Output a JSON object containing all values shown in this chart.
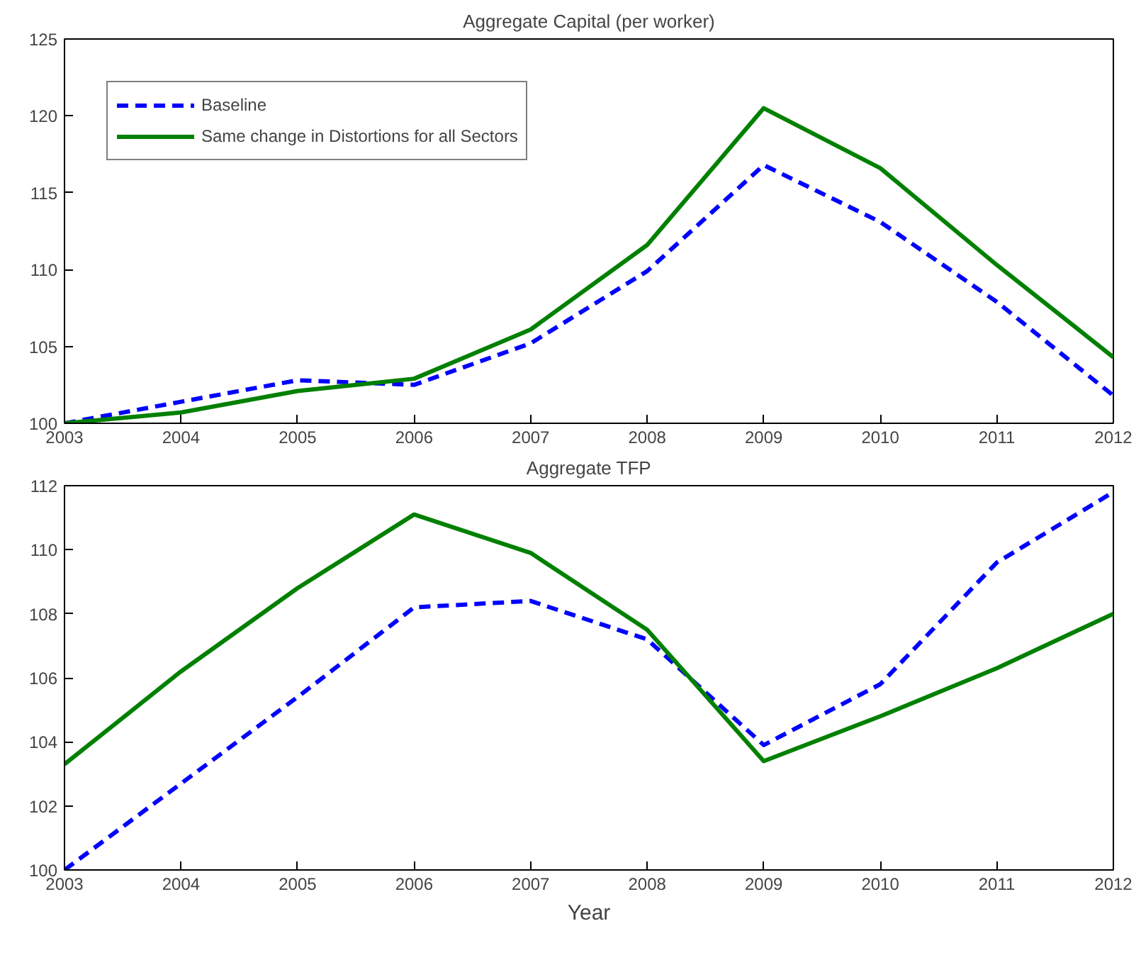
{
  "chart_data": [
    {
      "type": "line",
      "title": "Aggregate Capital (per worker)",
      "x": [
        2003,
        2004,
        2005,
        2006,
        2007,
        2008,
        2009,
        2010,
        2011,
        2012
      ],
      "series": [
        {
          "name": "Baseline",
          "color": "#0000ff",
          "line_style": "dashed",
          "values": [
            100,
            101.4,
            102.8,
            102.5,
            105.2,
            109.9,
            116.8,
            113.1,
            107.9,
            101.8
          ]
        },
        {
          "name": "Same change in Distortions for all Sectors",
          "color": "#008000",
          "line_style": "solid",
          "values": [
            100,
            100.7,
            102.1,
            102.9,
            106.1,
            111.6,
            120.5,
            116.6,
            110.3,
            104.3
          ]
        }
      ],
      "xlim": [
        2003,
        2012
      ],
      "xticks": [
        2003,
        2004,
        2005,
        2006,
        2007,
        2008,
        2009,
        2010,
        2011,
        2012
      ],
      "ylim": [
        100,
        125
      ],
      "yticks": [
        100,
        105,
        110,
        115,
        120,
        125
      ],
      "grid": false,
      "legend": "top left",
      "marker": "none"
    },
    {
      "type": "line",
      "title": "Aggregate TFP",
      "xlabel": "Year",
      "x": [
        2003,
        2004,
        2005,
        2006,
        2007,
        2008,
        2009,
        2010,
        2011,
        2012
      ],
      "series": [
        {
          "color": "#0000ff",
          "line_style": "dashed",
          "values": [
            100,
            102.7,
            105.4,
            108.2,
            108.4,
            107.2,
            103.9,
            105.8,
            109.6,
            111.8
          ]
        },
        {
          "color": "#008000",
          "line_style": "solid",
          "values": [
            103.3,
            106.2,
            108.8,
            111.1,
            109.9,
            107.5,
            103.4,
            104.8,
            106.3,
            108.0
          ]
        }
      ],
      "xlim": [
        2003,
        2012
      ],
      "xticks": [
        2003,
        2004,
        2005,
        2006,
        2007,
        2008,
        2009,
        2010,
        2011,
        2012
      ],
      "ylim": [
        100,
        112
      ],
      "yticks": [
        100,
        102,
        104,
        106,
        108,
        110,
        112
      ],
      "grid": false,
      "legend": false,
      "marker": "none"
    }
  ]
}
